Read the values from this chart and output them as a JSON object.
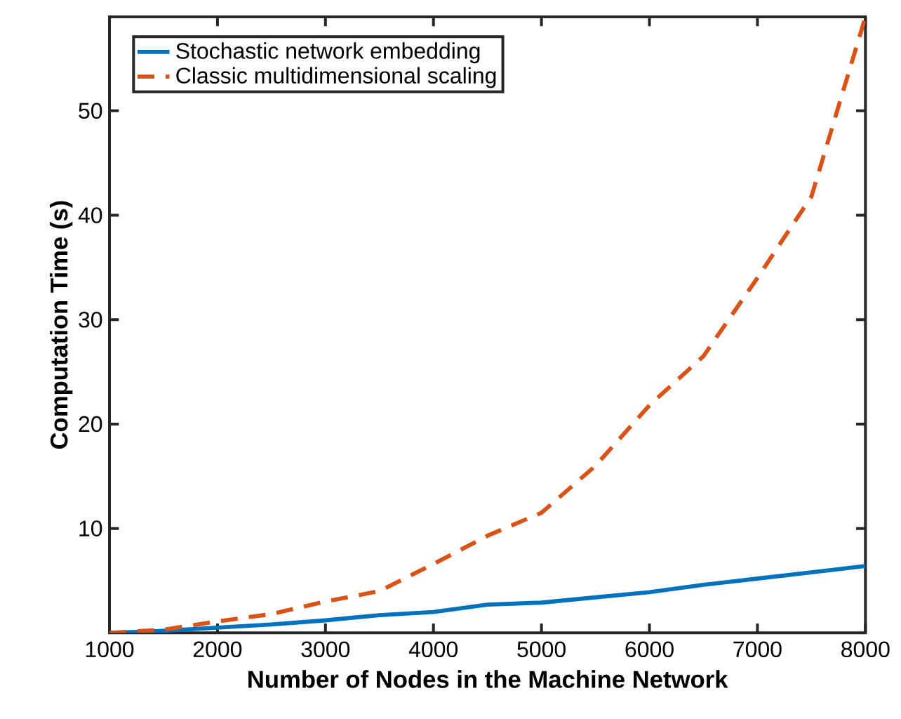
{
  "chart_data": {
    "type": "line",
    "xlabel": "Number of Nodes in the Machine Network",
    "ylabel": "Computation Time (s)",
    "x": [
      1000,
      1500,
      2000,
      2500,
      3000,
      3500,
      4000,
      4500,
      5000,
      5500,
      6000,
      6500,
      7000,
      7500,
      8000
    ],
    "series": [
      {
        "name": "Stochastic network embedding",
        "color": "#0072bd",
        "line_style": "solid",
        "values": [
          0,
          0.2,
          0.5,
          0.8,
          1.2,
          1.7,
          2.0,
          2.7,
          2.9,
          3.4,
          3.9,
          4.6,
          5.2,
          5.8,
          6.4
        ]
      },
      {
        "name": "Classic multidimensional scaling",
        "color": "#d95319",
        "line_style": "dashed",
        "values": [
          0,
          0.3,
          1.1,
          1.8,
          3.0,
          4.0,
          6.6,
          9.3,
          11.5,
          16.0,
          21.8,
          26.5,
          34,
          41.8,
          59
        ]
      }
    ],
    "xlim": [
      1000,
      8000
    ],
    "ylim": [
      0,
      59
    ],
    "xticks": [
      1000,
      2000,
      3000,
      4000,
      5000,
      6000,
      7000,
      8000
    ],
    "yticks": [
      10,
      20,
      30,
      40,
      50
    ],
    "grid": false,
    "legend": "top left",
    "marker": "none"
  }
}
